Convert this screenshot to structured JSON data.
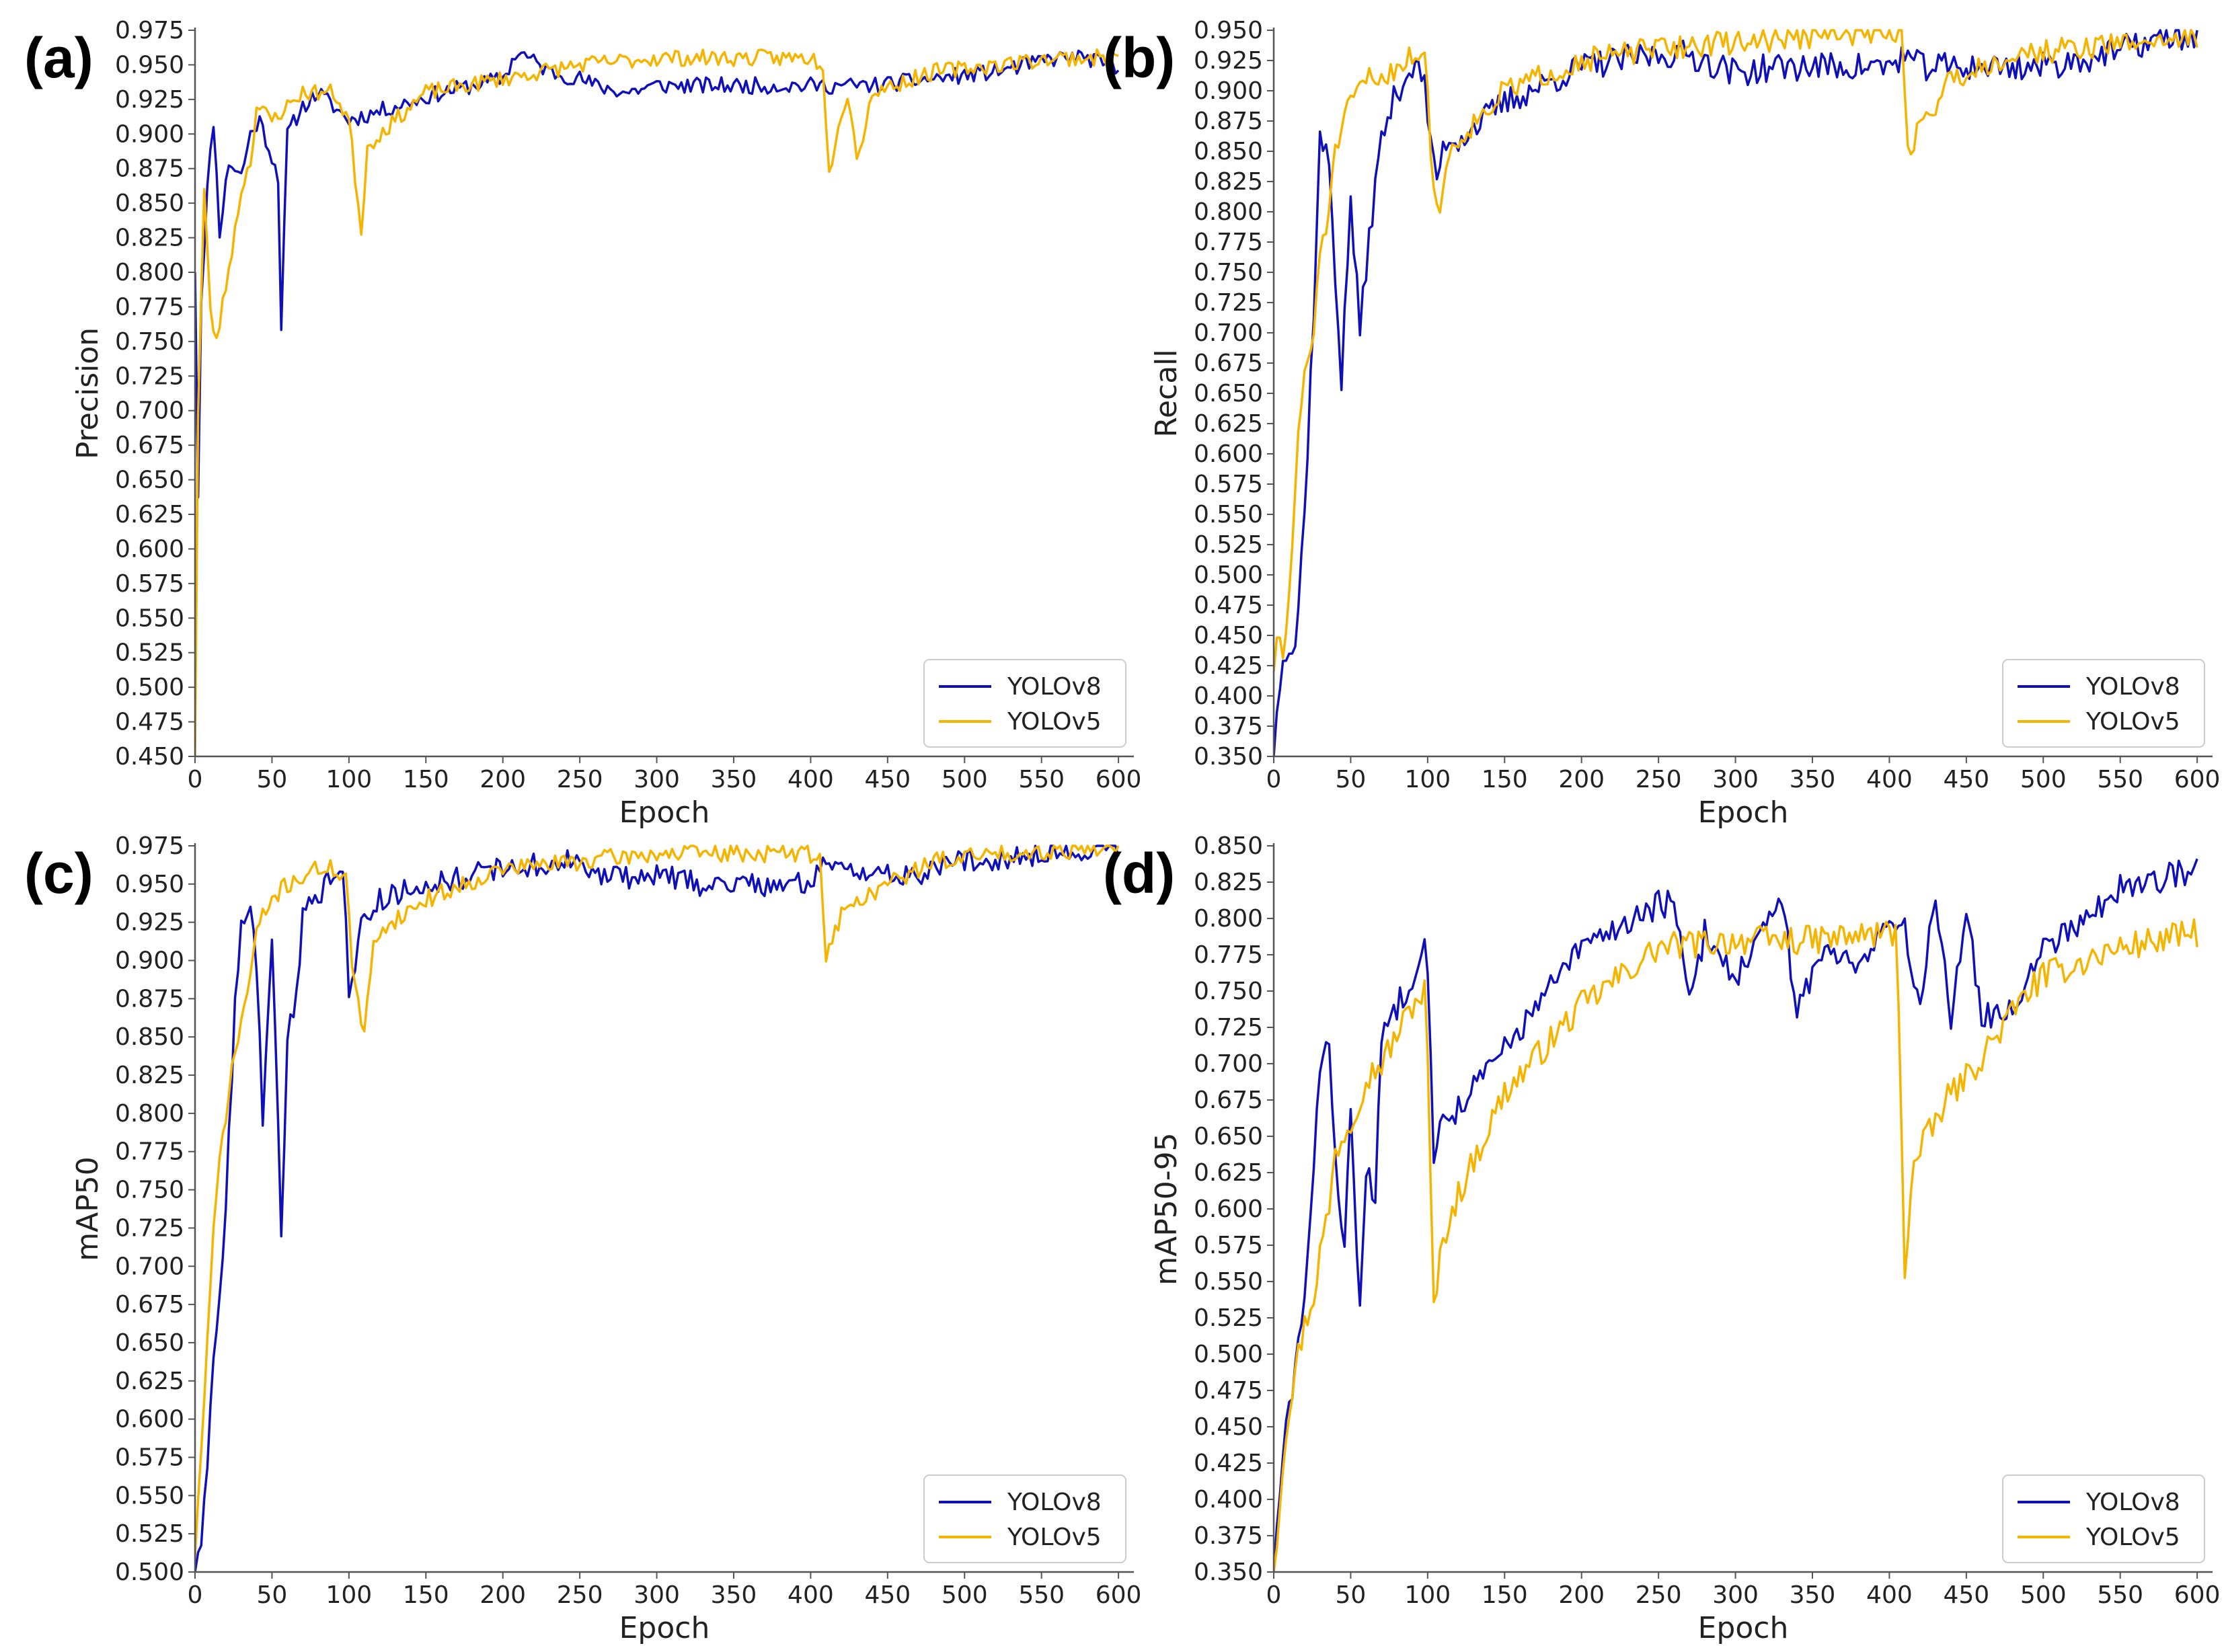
{
  "colors": {
    "yolov8": "#1010b8",
    "yolov5": "#f4b400",
    "axis": "#555555",
    "legend_border": "#cccccc"
  },
  "chart_data": [
    {
      "panel": "(a)",
      "type": "line",
      "xlabel": "Epoch",
      "ylabel": "Precision",
      "xlim": [
        0,
        610
      ],
      "ylim": [
        0.45,
        0.975
      ],
      "ystep": 0.025,
      "xticks": [
        0,
        50,
        100,
        150,
        200,
        250,
        300,
        350,
        400,
        450,
        500,
        550,
        600
      ],
      "legend": "bottom-right",
      "series": [
        {
          "name": "YOLOv8",
          "color_key": "yolov8",
          "noise": 0.006,
          "seed": 11,
          "x": [
            0,
            2,
            4,
            8,
            12,
            16,
            22,
            30,
            36,
            42,
            48,
            54,
            56,
            60,
            70,
            80,
            100,
            130,
            160,
            200,
            210,
            230,
            250,
            260,
            280,
            300,
            330,
            360,
            400,
            420,
            440,
            480,
            520,
            560,
            580,
            600
          ],
          "y": [
            0.8,
            0.64,
            0.78,
            0.86,
            0.91,
            0.83,
            0.88,
            0.87,
            0.9,
            0.91,
            0.89,
            0.87,
            0.76,
            0.9,
            0.92,
            0.93,
            0.91,
            0.92,
            0.93,
            0.94,
            0.96,
            0.945,
            0.94,
            0.935,
            0.93,
            0.935,
            0.935,
            0.935,
            0.935,
            0.935,
            0.935,
            0.94,
            0.945,
            0.955,
            0.955,
            0.945
          ]
        },
        {
          "name": "YOLOv5",
          "color_key": "yolov5",
          "noise": 0.006,
          "seed": 23,
          "x": [
            0,
            2,
            4,
            6,
            10,
            14,
            20,
            26,
            30,
            36,
            40,
            50,
            60,
            70,
            80,
            90,
            100,
            105,
            108,
            112,
            120,
            150,
            200,
            250,
            300,
            350,
            400,
            408,
            412,
            418,
            425,
            430,
            440,
            480,
            520,
            560,
            600
          ],
          "y": [
            0.45,
            0.7,
            0.78,
            0.86,
            0.77,
            0.75,
            0.79,
            0.83,
            0.86,
            0.88,
            0.92,
            0.91,
            0.92,
            0.93,
            0.93,
            0.93,
            0.91,
            0.86,
            0.83,
            0.89,
            0.9,
            0.93,
            0.94,
            0.95,
            0.955,
            0.955,
            0.955,
            0.95,
            0.87,
            0.91,
            0.93,
            0.88,
            0.93,
            0.945,
            0.95,
            0.955,
            0.955
          ]
        }
      ]
    },
    {
      "panel": "(b)",
      "type": "line",
      "xlabel": "Epoch",
      "ylabel": "Recall",
      "xlim": [
        0,
        610
      ],
      "ylim": [
        0.35,
        0.95
      ],
      "ystep": 0.025,
      "xticks": [
        0,
        50,
        100,
        150,
        200,
        250,
        300,
        350,
        400,
        450,
        500,
        550,
        600
      ],
      "legend": "bottom-right",
      "series": [
        {
          "name": "YOLOv8",
          "color_key": "yolov8",
          "noise": 0.012,
          "seed": 37,
          "x": [
            0,
            3,
            6,
            10,
            14,
            20,
            26,
            30,
            36,
            40,
            44,
            50,
            56,
            62,
            70,
            80,
            90,
            98,
            102,
            106,
            112,
            120,
            150,
            200,
            250,
            270,
            300,
            330,
            350,
            400,
            410,
            420,
            440,
            460,
            500,
            540,
            580,
            600
          ],
          "y": [
            0.35,
            0.4,
            0.44,
            0.44,
            0.44,
            0.55,
            0.72,
            0.86,
            0.84,
            0.75,
            0.66,
            0.81,
            0.7,
            0.78,
            0.86,
            0.9,
            0.92,
            0.91,
            0.85,
            0.83,
            0.86,
            0.86,
            0.89,
            0.92,
            0.93,
            0.93,
            0.915,
            0.92,
            0.92,
            0.92,
            0.93,
            0.92,
            0.92,
            0.92,
            0.92,
            0.93,
            0.945,
            0.945
          ]
        },
        {
          "name": "YOLOv5",
          "color_key": "yolov5",
          "noise": 0.01,
          "seed": 51,
          "x": [
            0,
            3,
            6,
            10,
            16,
            20,
            26,
            30,
            36,
            40,
            50,
            60,
            70,
            80,
            90,
            98,
            104,
            108,
            114,
            120,
            150,
            200,
            250,
            300,
            350,
            400,
            408,
            412,
            420,
            440,
            480,
            520,
            560,
            600
          ],
          "y": [
            0.42,
            0.45,
            0.43,
            0.48,
            0.62,
            0.66,
            0.7,
            0.77,
            0.8,
            0.85,
            0.89,
            0.91,
            0.91,
            0.92,
            0.93,
            0.93,
            0.82,
            0.8,
            0.85,
            0.86,
            0.9,
            0.925,
            0.935,
            0.94,
            0.945,
            0.95,
            0.95,
            0.85,
            0.87,
            0.91,
            0.93,
            0.935,
            0.94,
            0.945
          ]
        }
      ]
    },
    {
      "panel": "(c)",
      "type": "line",
      "xlabel": "Epoch",
      "ylabel": "mAP50",
      "xlim": [
        0,
        610
      ],
      "ylim": [
        0.5,
        0.975
      ],
      "ystep": 0.025,
      "xticks": [
        0,
        50,
        100,
        150,
        200,
        250,
        300,
        350,
        400,
        450,
        500,
        550,
        600
      ],
      "legend": "bottom-right",
      "series": [
        {
          "name": "YOLOv8",
          "color_key": "yolov8",
          "noise": 0.008,
          "seed": 63,
          "x": [
            0,
            4,
            8,
            12,
            16,
            20,
            26,
            30,
            36,
            40,
            44,
            50,
            56,
            60,
            66,
            70,
            80,
            90,
            96,
            100,
            104,
            110,
            120,
            150,
            200,
            250,
            260,
            280,
            300,
            330,
            350,
            400,
            410,
            420,
            440,
            460,
            500,
            550,
            600
          ],
          "y": [
            0.5,
            0.51,
            0.57,
            0.64,
            0.68,
            0.74,
            0.87,
            0.92,
            0.94,
            0.9,
            0.79,
            0.92,
            0.72,
            0.85,
            0.88,
            0.93,
            0.94,
            0.96,
            0.965,
            0.88,
            0.9,
            0.93,
            0.94,
            0.95,
            0.96,
            0.965,
            0.955,
            0.955,
            0.955,
            0.95,
            0.95,
            0.95,
            0.965,
            0.965,
            0.955,
            0.955,
            0.965,
            0.97,
            0.975
          ]
        },
        {
          "name": "YOLOv5",
          "color_key": "yolov5",
          "noise": 0.006,
          "seed": 71,
          "x": [
            0,
            4,
            8,
            12,
            16,
            20,
            26,
            30,
            36,
            40,
            50,
            60,
            70,
            80,
            90,
            98,
            102,
            106,
            110,
            116,
            120,
            150,
            200,
            250,
            300,
            350,
            400,
            406,
            410,
            416,
            420,
            440,
            480,
            520,
            560,
            600
          ],
          "y": [
            0.51,
            0.58,
            0.65,
            0.72,
            0.77,
            0.8,
            0.84,
            0.86,
            0.89,
            0.92,
            0.94,
            0.95,
            0.955,
            0.96,
            0.96,
            0.955,
            0.9,
            0.87,
            0.85,
            0.91,
            0.92,
            0.94,
            0.96,
            0.965,
            0.97,
            0.97,
            0.97,
            0.965,
            0.905,
            0.92,
            0.93,
            0.945,
            0.965,
            0.97,
            0.972,
            0.975
          ]
        }
      ]
    },
    {
      "panel": "(d)",
      "type": "line",
      "xlabel": "Epoch",
      "ylabel": "mAP50-95",
      "xlim": [
        0,
        610
      ],
      "ylim": [
        0.35,
        0.85
      ],
      "ystep": 0.025,
      "xticks": [
        0,
        50,
        100,
        150,
        200,
        250,
        300,
        350,
        400,
        450,
        500,
        550,
        600
      ],
      "legend": "bottom-right",
      "series": [
        {
          "name": "YOLOv8",
          "color_key": "yolov8",
          "noise": 0.01,
          "seed": 83,
          "x": [
            0,
            4,
            8,
            14,
            20,
            26,
            30,
            36,
            40,
            46,
            50,
            56,
            60,
            66,
            70,
            80,
            90,
            96,
            100,
            104,
            110,
            120,
            150,
            200,
            250,
            260,
            270,
            280,
            300,
            330,
            340,
            360,
            380,
            400,
            410,
            420,
            430,
            440,
            450,
            460,
            480,
            500,
            550,
            600
          ],
          "y": [
            0.35,
            0.4,
            0.45,
            0.49,
            0.54,
            0.62,
            0.7,
            0.72,
            0.63,
            0.58,
            0.66,
            0.53,
            0.63,
            0.6,
            0.72,
            0.74,
            0.76,
            0.785,
            0.77,
            0.64,
            0.66,
            0.67,
            0.71,
            0.78,
            0.81,
            0.81,
            0.74,
            0.79,
            0.76,
            0.81,
            0.74,
            0.78,
            0.77,
            0.8,
            0.79,
            0.74,
            0.82,
            0.73,
            0.81,
            0.73,
            0.74,
            0.78,
            0.82,
            0.835
          ]
        },
        {
          "name": "YOLOv5",
          "color_key": "yolov5",
          "noise": 0.01,
          "seed": 97,
          "x": [
            0,
            4,
            8,
            14,
            20,
            26,
            30,
            36,
            40,
            50,
            60,
            70,
            80,
            90,
            98,
            100,
            104,
            110,
            120,
            150,
            200,
            250,
            300,
            350,
            400,
            405,
            410,
            416,
            420,
            430,
            440,
            450,
            470,
            490,
            500,
            550,
            600
          ],
          "y": [
            0.35,
            0.4,
            0.45,
            0.49,
            0.52,
            0.54,
            0.57,
            0.6,
            0.64,
            0.66,
            0.69,
            0.7,
            0.72,
            0.74,
            0.75,
            0.7,
            0.53,
            0.58,
            0.61,
            0.68,
            0.74,
            0.78,
            0.785,
            0.785,
            0.79,
            0.79,
            0.56,
            0.63,
            0.64,
            0.66,
            0.68,
            0.69,
            0.72,
            0.75,
            0.76,
            0.78,
            0.79
          ]
        }
      ]
    }
  ]
}
